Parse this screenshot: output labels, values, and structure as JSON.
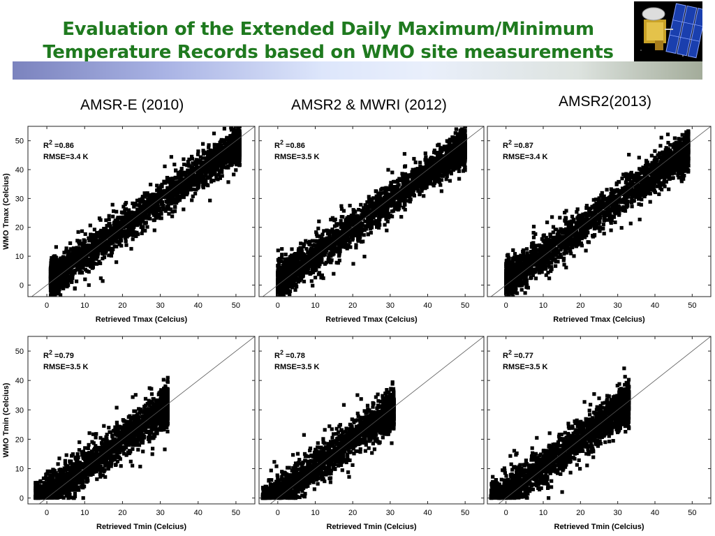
{
  "slide": {
    "title_line1": "Evaluation of the Extended Daily Maximum/Minimum",
    "title_line2": "Temperature  Records based on WMO site measurements",
    "title_color": "#1f7a1f",
    "column_titles": [
      "AMSR-E (2010)",
      "AMSR2 & MWRI (2012)",
      "AMSR2(2013)"
    ]
  },
  "chart_data": [
    {
      "type": "scatter",
      "row": "Tmax",
      "column": "AMSR-E (2010)",
      "xlabel": "Retrieved Tmax (Celcius)",
      "ylabel": "WMO Tmax (Celcius)",
      "xlim": [
        -5,
        55
      ],
      "ylim": [
        -4,
        55
      ],
      "xticks": [
        0,
        10,
        20,
        30,
        40,
        50
      ],
      "yticks": [
        0,
        10,
        20,
        30,
        40,
        50
      ],
      "show_yaxis_labels": true,
      "r2_label": "R",
      "r2_sup": "2",
      "r2_value": " =0.86",
      "rmse": "RMSE=3.4 K",
      "one_to_one_line": true,
      "distribution": {
        "x_range": [
          1,
          51
        ],
        "slope": 0.95,
        "intercept": 0.8,
        "spread": 3.4,
        "n": 2600
      }
    },
    {
      "type": "scatter",
      "row": "Tmax",
      "column": "AMSR2 & MWRI (2012)",
      "xlabel": "Retrieved Tmax (Celcius)",
      "ylabel": "",
      "xlim": [
        -5,
        55
      ],
      "ylim": [
        -4,
        55
      ],
      "xticks": [
        0,
        10,
        20,
        30,
        40,
        50
      ],
      "yticks": [
        0,
        10,
        20,
        30,
        40,
        50
      ],
      "show_yaxis_labels": false,
      "r2_label": "R",
      "r2_sup": "2",
      "r2_value": " =0.86",
      "rmse": "RMSE=3.5 K",
      "one_to_one_line": true,
      "distribution": {
        "x_range": [
          0,
          50
        ],
        "slope": 0.95,
        "intercept": 0.8,
        "spread": 3.5,
        "n": 2600
      }
    },
    {
      "type": "scatter",
      "row": "Tmax",
      "column": "AMSR2(2013)",
      "xlabel": "Retrieved Tmax (Celcius)",
      "ylabel": "",
      "xlim": [
        -5,
        55
      ],
      "ylim": [
        -4,
        55
      ],
      "xticks": [
        0,
        10,
        20,
        30,
        40,
        50
      ],
      "yticks": [
        0,
        10,
        20,
        30,
        40,
        50
      ],
      "show_yaxis_labels": false,
      "r2_label": "R",
      "r2_sup": "2",
      "r2_value": " =0.87",
      "rmse": "RMSE=3.4 K",
      "one_to_one_line": true,
      "distribution": {
        "x_range": [
          0,
          49
        ],
        "slope": 0.93,
        "intercept": 1.2,
        "spread": 3.4,
        "n": 2600
      }
    },
    {
      "type": "scatter",
      "row": "Tmin",
      "column": "AMSR-E (2010)",
      "xlabel": "Retrieved Tmin (Celcius)",
      "ylabel": "WMO Tmin (Celcius)",
      "xlim": [
        -5,
        55
      ],
      "ylim": [
        -2,
        55
      ],
      "xticks": [
        0,
        10,
        20,
        30,
        40,
        50
      ],
      "yticks": [
        0,
        10,
        20,
        30,
        40,
        50
      ],
      "show_yaxis_labels": true,
      "r2_label": "R",
      "r2_sup": "2",
      "r2_value": " =0.79",
      "rmse": "RMSE=3.5 K",
      "one_to_one_line": true,
      "distribution": {
        "x_range": [
          -3,
          32
        ],
        "slope": 0.95,
        "intercept": 0.8,
        "spread": 3.5,
        "n": 2200,
        "y_min": 0
      }
    },
    {
      "type": "scatter",
      "row": "Tmin",
      "column": "AMSR2 & MWRI (2012)",
      "xlabel": "Retrieved Tmin (Celcius)",
      "ylabel": "",
      "xlim": [
        -5,
        55
      ],
      "ylim": [
        -2,
        55
      ],
      "xticks": [
        0,
        10,
        20,
        30,
        40,
        50
      ],
      "yticks": [
        0,
        10,
        20,
        30,
        40,
        50
      ],
      "show_yaxis_labels": false,
      "r2_label": "R",
      "r2_sup": "2",
      "r2_value": " =0.78",
      "rmse": "RMSE=3.5 K",
      "one_to_one_line": true,
      "distribution": {
        "x_range": [
          -4,
          31
        ],
        "slope": 0.95,
        "intercept": 1.0,
        "spread": 3.5,
        "n": 2200,
        "y_min": 0
      }
    },
    {
      "type": "scatter",
      "row": "Tmin",
      "column": "AMSR2(2013)",
      "xlabel": "Retrieved Tmin (Celcius)",
      "ylabel": "",
      "xlim": [
        -5,
        55
      ],
      "ylim": [
        -2,
        55
      ],
      "xticks": [
        0,
        10,
        20,
        30,
        40,
        50
      ],
      "yticks": [
        0,
        10,
        20,
        30,
        40,
        50
      ],
      "show_yaxis_labels": false,
      "r2_label": "R",
      "r2_sup": "2",
      "r2_value": " =0.77",
      "rmse": "RMSE=3.5 K",
      "one_to_one_line": true,
      "distribution": {
        "x_range": [
          -4,
          33
        ],
        "slope": 0.95,
        "intercept": 1.2,
        "spread": 3.6,
        "n": 2200,
        "y_min": 0
      }
    }
  ]
}
